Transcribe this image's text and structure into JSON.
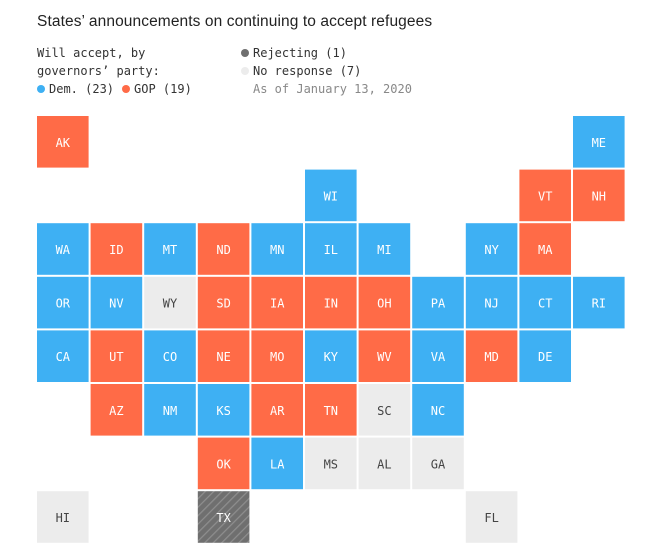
{
  "title": "States’ announcements on continuing to accept refugees",
  "legend": {
    "line1": "Will accept, by",
    "line2": "governors’ party:",
    "dem_label": "Dem. (23)",
    "gop_label": "GOP (19)",
    "rejecting_label": "Rejecting (1)",
    "no_response_label": "No response (7)",
    "as_of": "As of January 13, 2020"
  },
  "colors": {
    "dem": "#3eb0f3",
    "gop": "#ff6b47",
    "no_response": "#ececec",
    "rejecting": "#6f6f6f",
    "text_dark": "#444444",
    "text_light": "#ffffff"
  },
  "chart_data": {
    "type": "tile-grid map",
    "categories": [
      "dem",
      "gop",
      "rejecting",
      "no_response"
    ],
    "counts": {
      "dem": 23,
      "gop": 19,
      "rejecting": 1,
      "no_response": 7
    },
    "states": [
      {
        "abbr": "AK",
        "col": 0,
        "row": 0,
        "status": "gop"
      },
      {
        "abbr": "ME",
        "col": 10,
        "row": 0,
        "status": "dem"
      },
      {
        "abbr": "WI",
        "col": 5,
        "row": 1,
        "status": "dem"
      },
      {
        "abbr": "VT",
        "col": 9,
        "row": 1,
        "status": "gop"
      },
      {
        "abbr": "NH",
        "col": 10,
        "row": 1,
        "status": "gop"
      },
      {
        "abbr": "WA",
        "col": 0,
        "row": 2,
        "status": "dem"
      },
      {
        "abbr": "ID",
        "col": 1,
        "row": 2,
        "status": "gop"
      },
      {
        "abbr": "MT",
        "col": 2,
        "row": 2,
        "status": "dem"
      },
      {
        "abbr": "ND",
        "col": 3,
        "row": 2,
        "status": "gop"
      },
      {
        "abbr": "MN",
        "col": 4,
        "row": 2,
        "status": "dem"
      },
      {
        "abbr": "IL",
        "col": 5,
        "row": 2,
        "status": "dem"
      },
      {
        "abbr": "MI",
        "col": 6,
        "row": 2,
        "status": "dem"
      },
      {
        "abbr": "NY",
        "col": 8,
        "row": 2,
        "status": "dem"
      },
      {
        "abbr": "MA",
        "col": 9,
        "row": 2,
        "status": "gop"
      },
      {
        "abbr": "OR",
        "col": 0,
        "row": 3,
        "status": "dem"
      },
      {
        "abbr": "NV",
        "col": 1,
        "row": 3,
        "status": "dem"
      },
      {
        "abbr": "WY",
        "col": 2,
        "row": 3,
        "status": "no_response"
      },
      {
        "abbr": "SD",
        "col": 3,
        "row": 3,
        "status": "gop"
      },
      {
        "abbr": "IA",
        "col": 4,
        "row": 3,
        "status": "gop"
      },
      {
        "abbr": "IN",
        "col": 5,
        "row": 3,
        "status": "gop"
      },
      {
        "abbr": "OH",
        "col": 6,
        "row": 3,
        "status": "gop"
      },
      {
        "abbr": "PA",
        "col": 7,
        "row": 3,
        "status": "dem"
      },
      {
        "abbr": "NJ",
        "col": 8,
        "row": 3,
        "status": "dem"
      },
      {
        "abbr": "CT",
        "col": 9,
        "row": 3,
        "status": "dem"
      },
      {
        "abbr": "RI",
        "col": 10,
        "row": 3,
        "status": "dem"
      },
      {
        "abbr": "CA",
        "col": 0,
        "row": 4,
        "status": "dem"
      },
      {
        "abbr": "UT",
        "col": 1,
        "row": 4,
        "status": "gop"
      },
      {
        "abbr": "CO",
        "col": 2,
        "row": 4,
        "status": "dem"
      },
      {
        "abbr": "NE",
        "col": 3,
        "row": 4,
        "status": "gop"
      },
      {
        "abbr": "MO",
        "col": 4,
        "row": 4,
        "status": "gop"
      },
      {
        "abbr": "KY",
        "col": 5,
        "row": 4,
        "status": "dem"
      },
      {
        "abbr": "WV",
        "col": 6,
        "row": 4,
        "status": "gop"
      },
      {
        "abbr": "VA",
        "col": 7,
        "row": 4,
        "status": "dem"
      },
      {
        "abbr": "MD",
        "col": 8,
        "row": 4,
        "status": "gop"
      },
      {
        "abbr": "DE",
        "col": 9,
        "row": 4,
        "status": "dem"
      },
      {
        "abbr": "AZ",
        "col": 1,
        "row": 5,
        "status": "gop"
      },
      {
        "abbr": "NM",
        "col": 2,
        "row": 5,
        "status": "dem"
      },
      {
        "abbr": "KS",
        "col": 3,
        "row": 5,
        "status": "dem"
      },
      {
        "abbr": "AR",
        "col": 4,
        "row": 5,
        "status": "gop"
      },
      {
        "abbr": "TN",
        "col": 5,
        "row": 5,
        "status": "gop"
      },
      {
        "abbr": "SC",
        "col": 6,
        "row": 5,
        "status": "no_response"
      },
      {
        "abbr": "NC",
        "col": 7,
        "row": 5,
        "status": "dem"
      },
      {
        "abbr": "OK",
        "col": 3,
        "row": 6,
        "status": "gop"
      },
      {
        "abbr": "LA",
        "col": 4,
        "row": 6,
        "status": "dem"
      },
      {
        "abbr": "MS",
        "col": 5,
        "row": 6,
        "status": "no_response"
      },
      {
        "abbr": "AL",
        "col": 6,
        "row": 6,
        "status": "no_response"
      },
      {
        "abbr": "GA",
        "col": 7,
        "row": 6,
        "status": "no_response"
      },
      {
        "abbr": "HI",
        "col": 0,
        "row": 7,
        "status": "no_response"
      },
      {
        "abbr": "TX",
        "col": 3,
        "row": 7,
        "status": "rejecting"
      },
      {
        "abbr": "FL",
        "col": 8,
        "row": 7,
        "status": "no_response"
      }
    ]
  }
}
